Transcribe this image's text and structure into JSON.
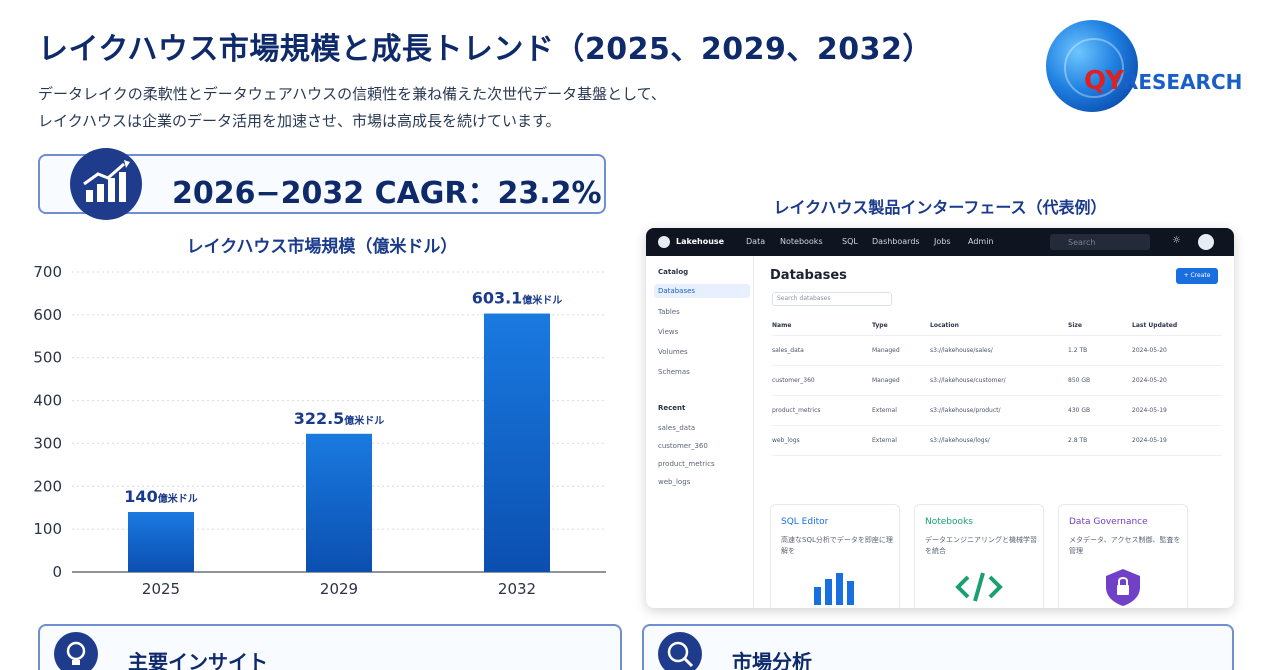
{
  "header": {
    "title": "レイクハウス市場規模と成長トレンド（2025、2029、2032）",
    "subtitle_line1": "データレイクの柔軟性とデータウェアハウスの信頼性を兼ね備えた次世代データ基盤として、",
    "subtitle_line2": "レイクハウスは企業のデータ活用を加速させ、市場は高成長を続けています。"
  },
  "logo": {
    "mark": "QY",
    "rest": "RESEARCH"
  },
  "cagr": {
    "label": "2026−2032 CAGR：23.2%"
  },
  "chart_data": {
    "type": "bar",
    "title": "レイクハウス市場規模（億米ドル）",
    "categories": [
      "2025",
      "2029",
      "2032"
    ],
    "values": [
      140,
      322.5,
      603.1
    ],
    "value_labels": [
      "140",
      "322.5",
      "603.1"
    ],
    "value_unit": "億米ドル",
    "yticks": [
      "0",
      "100",
      "200",
      "300",
      "400",
      "500",
      "600",
      "700"
    ],
    "ylim": [
      0,
      700
    ],
    "grid": true,
    "color": "#1565c8"
  },
  "ui_preview": {
    "title": "レイクハウス製品インターフェース（代表例）",
    "brand": "Lakehouse",
    "nav": [
      "Data",
      "Notebooks",
      "SQL",
      "Dashboards",
      "Jobs",
      "Admin"
    ],
    "search_placeholder": "Search",
    "sidebar_catalog": "Catalog",
    "sidebar_items": [
      "Databases",
      "Tables",
      "Views",
      "Volumes",
      "Schemas"
    ],
    "sidebar_recent": "Recent",
    "recent_items": [
      "sales_data",
      "customer_360",
      "product_metrics",
      "web_logs"
    ],
    "heading": "Databases",
    "create": "+ Create",
    "filter_placeholder": "Search databases",
    "table_headers": [
      "Name",
      "Type",
      "Location",
      "Size",
      "Last Updated"
    ],
    "rows": [
      [
        "sales_data",
        "Managed",
        "s3://lakehouse/sales/",
        "1.2 TB",
        "2024-05-20"
      ],
      [
        "customer_360",
        "Managed",
        "s3://lakehouse/customer/",
        "850 GB",
        "2024-05-20"
      ],
      [
        "product_metrics",
        "External",
        "s3://lakehouse/product/",
        "430 GB",
        "2024-05-19"
      ],
      [
        "web_logs",
        "External",
        "s3://lakehouse/logs/",
        "2.8 TB",
        "2024-05-19"
      ]
    ],
    "cards": [
      {
        "title": "SQL Editor",
        "desc": "高速なSQL分析でデータを即座に理解を",
        "color": "#1a6fe0"
      },
      {
        "title": "Notebooks",
        "desc": "データエンジニアリングと機械学習を統合",
        "color": "#1aa070"
      },
      {
        "title": "Data Governance",
        "desc": "メタデータ、アクセス制御、監査を管理",
        "color": "#7040c8"
      }
    ]
  },
  "panels": {
    "left_title": "主要インサイト",
    "right_title": "市場分析"
  }
}
